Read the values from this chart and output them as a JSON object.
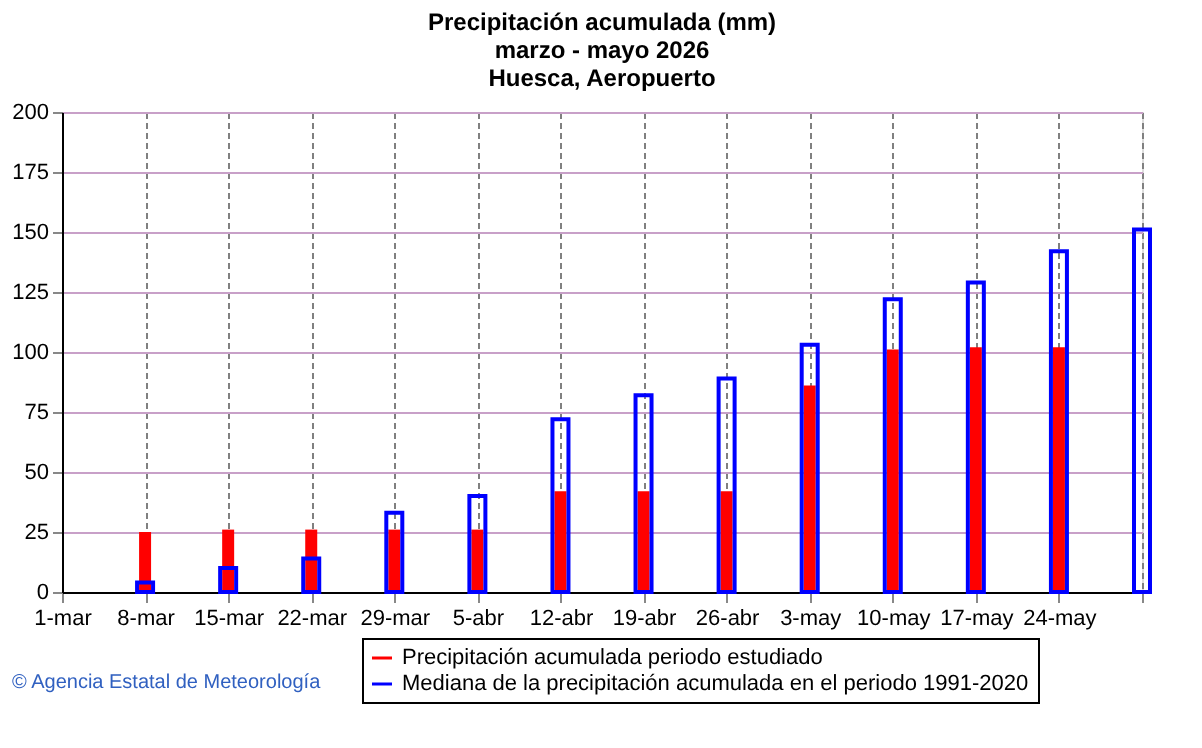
{
  "chart_data": {
    "type": "bar",
    "title": "Precipitación acumulada (mm)\nmarzo - mayo 2026\nHuesca, Aeropuerto",
    "categories": [
      "1-mar",
      "8-mar",
      "15-mar",
      "22-mar",
      "29-mar",
      "5-abr",
      "12-abr",
      "19-abr",
      "26-abr",
      "3-may",
      "10-may",
      "17-may",
      "24-may",
      null
    ],
    "series": [
      {
        "name": "Precipitación acumulada periodo estudiado",
        "color": "#ff0000",
        "values": [
          null,
          25,
          26,
          26,
          26,
          26,
          42,
          42,
          42,
          86,
          101,
          102,
          102,
          null
        ]
      },
      {
        "name": "Mediana de la precipitación acumulada en el periodo 1991-2020",
        "color": "#0000ff",
        "values": [
          null,
          4,
          10,
          14,
          33,
          40,
          72,
          82,
          89,
          103,
          122,
          129,
          142,
          151
        ]
      }
    ],
    "ylim": [
      0,
      200
    ],
    "yticks": [
      0,
      25,
      50,
      75,
      100,
      125,
      150,
      175,
      200
    ],
    "grid": true,
    "legend": "bottom",
    "annotations": [
      "© Agencia Estatal de Meteorología"
    ]
  }
}
